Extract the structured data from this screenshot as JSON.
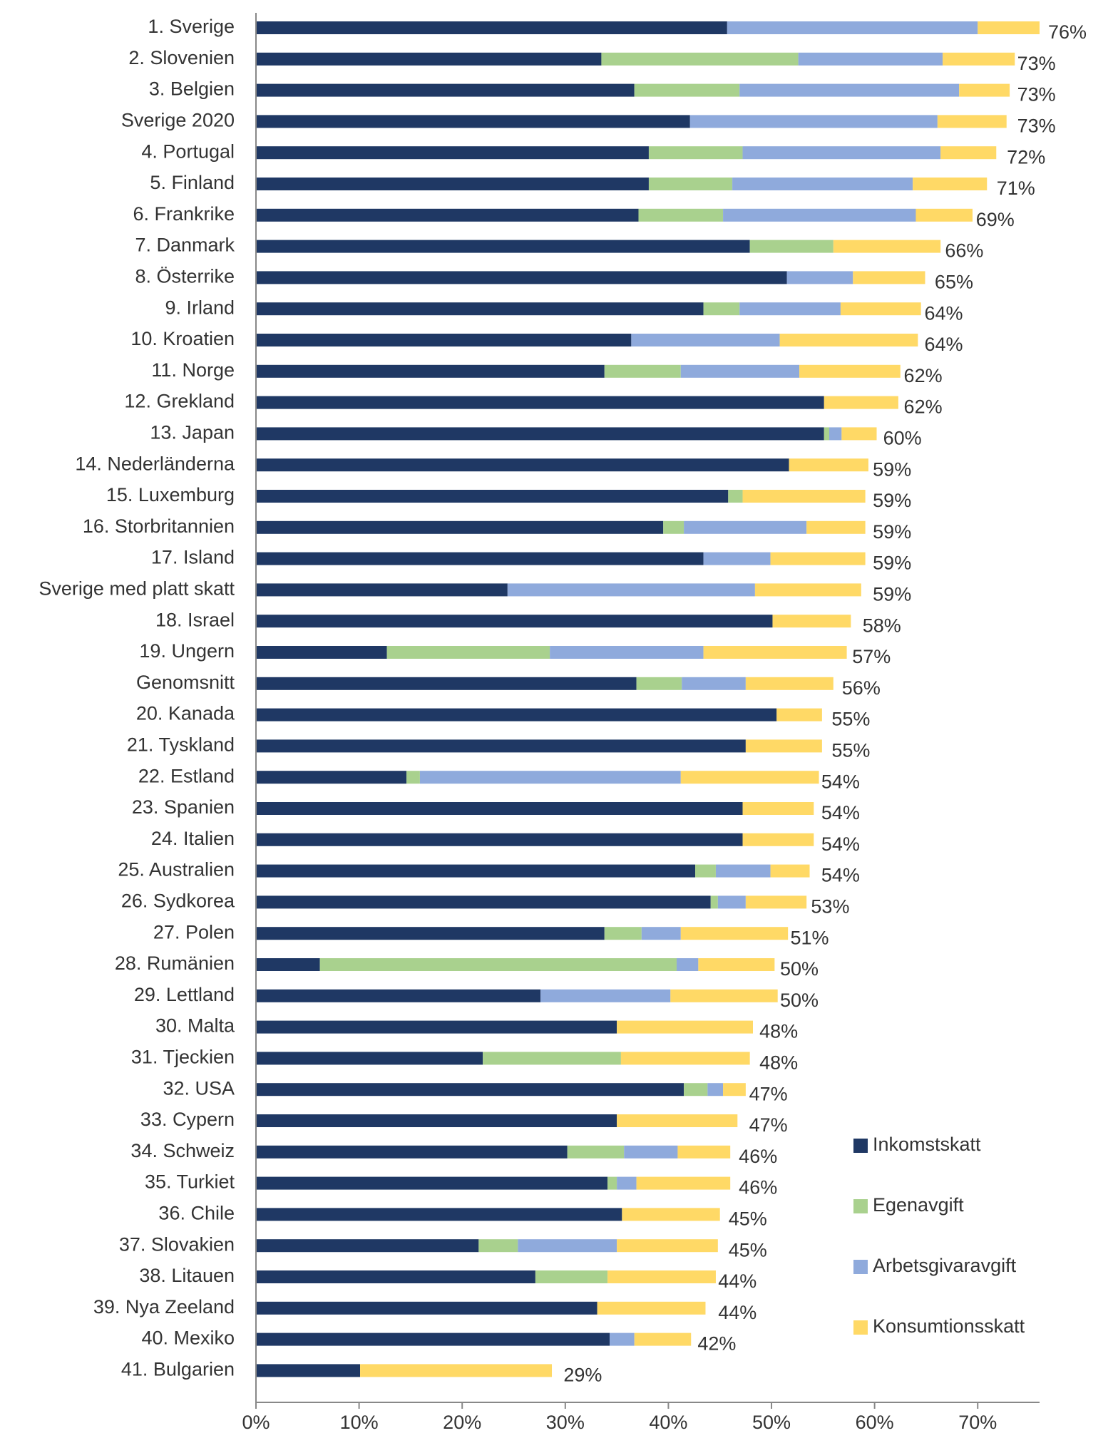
{
  "chart_data": {
    "type": "stacked-barh",
    "categories": [
      "1. Sverige",
      "2. Slovenien",
      "3. Belgien",
      "Sverige 2020",
      "4. Portugal",
      "5. Finland",
      "6. Frankrike",
      "7. Danmark",
      "8. Österrike",
      "9. Irland",
      "10. Kroatien",
      "11. Norge",
      "12. Grekland",
      "13. Japan",
      "14. Nederländerna",
      "15. Luxemburg",
      "16. Storbritannien",
      "17. Island",
      "Sverige med platt skatt",
      "18. Israel",
      "19. Ungern",
      "Genomsnitt",
      "20. Kanada",
      "21. Tyskland",
      "22. Estland",
      "23. Spanien",
      "24. Italien",
      "25. Australien",
      "26. Sydkorea",
      "27. Polen",
      "28. Rumänien",
      "29. Lettland",
      "30. Malta",
      "31. Tjeckien",
      "32. USA",
      "33. Cypern",
      "34. Schweiz",
      "35. Turkiet",
      "36. Chile",
      "37. Slovakien",
      "38. Litauen",
      "39. Nya Zeeland",
      "40. Mexiko",
      "41. Bulgarien"
    ],
    "series": [
      {
        "name": "Inkomstskatt",
        "color": "#1f3864",
        "values": [
          45.7,
          33.5,
          36.7,
          42.1,
          38.1,
          38.1,
          37.1,
          47.9,
          51.5,
          43.4,
          36.4,
          33.8,
          55.1,
          55.1,
          51.7,
          45.8,
          39.5,
          43.4,
          24.4,
          50.1,
          12.7,
          36.9,
          50.5,
          47.5,
          14.6,
          47.2,
          47.2,
          42.6,
          44.1,
          33.8,
          6.2,
          27.6,
          35.0,
          22.0,
          41.5,
          35.0,
          30.2,
          34.1,
          35.5,
          21.6,
          27.1,
          33.1,
          34.3,
          10.1
        ]
      },
      {
        "name": "Egenavgift",
        "color": "#a9d18e",
        "values": [
          0,
          19.1,
          10.2,
          0,
          9.1,
          8.1,
          8.2,
          8.1,
          0,
          3.5,
          0,
          7.4,
          0,
          0.5,
          0,
          1.4,
          2.0,
          0,
          0,
          0,
          15.8,
          4.4,
          0,
          0,
          1.3,
          0,
          0,
          2.0,
          0.7,
          3.6,
          34.6,
          0,
          0,
          13.4,
          2.3,
          0,
          5.5,
          0.9,
          0,
          3.8,
          7.0,
          0,
          0,
          0
        ]
      },
      {
        "name": "Arbetsgivaravgift",
        "color": "#8faadc",
        "values": [
          24.3,
          14.0,
          21.3,
          24.0,
          19.2,
          17.5,
          18.7,
          0,
          6.4,
          9.8,
          14.4,
          11.5,
          0,
          1.2,
          0,
          0,
          11.9,
          6.5,
          24.0,
          0,
          14.9,
          6.2,
          0,
          0,
          25.3,
          0,
          0,
          5.3,
          2.7,
          3.8,
          2.1,
          12.6,
          0,
          0,
          1.5,
          0,
          5.2,
          1.9,
          0,
          9.6,
          0,
          0,
          2.4,
          0
        ]
      },
      {
        "name": "Konsumtionsskatt",
        "color": "#ffd966",
        "values": [
          6.0,
          7.0,
          4.9,
          6.7,
          5.4,
          7.2,
          5.5,
          10.4,
          7.0,
          7.8,
          13.4,
          9.8,
          7.2,
          3.4,
          7.7,
          11.9,
          5.7,
          9.2,
          10.3,
          7.6,
          13.9,
          8.5,
          4.4,
          7.4,
          13.4,
          6.9,
          6.9,
          3.8,
          5.9,
          10.4,
          7.4,
          10.4,
          13.2,
          12.5,
          2.2,
          11.7,
          5.1,
          9.1,
          9.5,
          9.8,
          10.5,
          10.5,
          5.5,
          18.6
        ]
      }
    ],
    "totals": [
      76,
      73,
      73,
      73,
      72,
      71,
      69,
      66,
      65,
      64,
      64,
      62,
      62,
      60,
      59,
      59,
      59,
      59,
      59,
      58,
      57,
      56,
      55,
      55,
      54,
      54,
      54,
      54,
      53,
      51,
      50,
      50,
      48,
      48,
      47,
      47,
      46,
      46,
      45,
      45,
      44,
      44,
      42,
      29
    ],
    "total_labels": [
      "76%",
      "73%",
      "73%",
      "73%",
      "72%",
      "71%",
      "69%",
      "66%",
      "65%",
      "64%",
      "64%",
      "62%",
      "62%",
      "60%",
      "59%",
      "59%",
      "59%",
      "59%",
      "59%",
      "58%",
      "57%",
      "56%",
      "55%",
      "55%",
      "54%",
      "54%",
      "54%",
      "54%",
      "53%",
      "51%",
      "50%",
      "50%",
      "48%",
      "48%",
      "47%",
      "47%",
      "46%",
      "46%",
      "45%",
      "45%",
      "44%",
      "44%",
      "42%",
      "29%"
    ],
    "xlim": [
      0,
      76
    ],
    "xticks": [
      {
        "value": 0,
        "label": "0%"
      },
      {
        "value": 10,
        "label": "10%"
      },
      {
        "value": 20,
        "label": "20%"
      },
      {
        "value": 30,
        "label": "30%"
      },
      {
        "value": 40,
        "label": "40%"
      },
      {
        "value": 50,
        "label": "50%"
      },
      {
        "value": 60,
        "label": "60%"
      },
      {
        "value": 70,
        "label": "70%"
      }
    ],
    "legend": "lower-right"
  }
}
